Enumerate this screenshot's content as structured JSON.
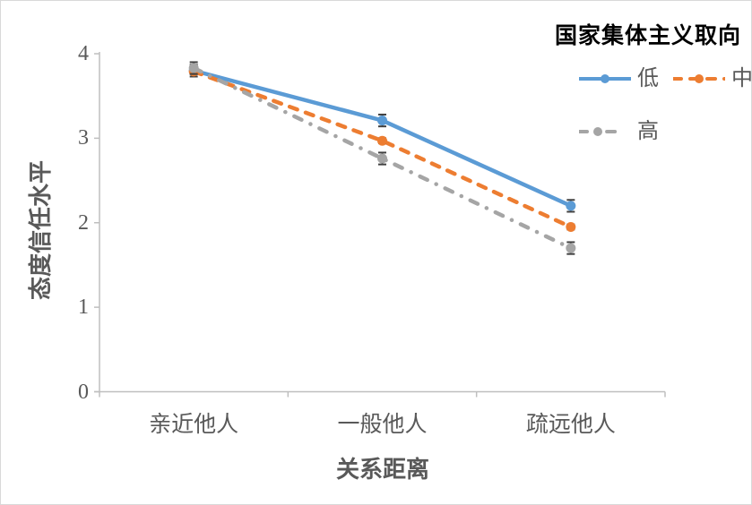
{
  "chart_data": {
    "type": "line",
    "title": "",
    "categories": [
      "亲近他人",
      "一般他人",
      "疏远他人"
    ],
    "series": [
      {
        "key": "low",
        "name": "低",
        "color": "#5B9BD5",
        "line_style": "solid",
        "values": [
          3.8,
          3.21,
          2.2
        ],
        "error": 0.07
      },
      {
        "key": "mid",
        "name": "中",
        "color": "#ED7D31",
        "line_style": "dashed",
        "values": [
          3.79,
          2.97,
          1.95
        ],
        "error": 0.03
      },
      {
        "key": "high",
        "name": "高",
        "color": "#A5A5A5",
        "line_style": "dashdot",
        "values": [
          3.83,
          2.76,
          1.7
        ],
        "error": 0.07
      }
    ],
    "xlabel": "关系距离",
    "ylabel": "态度信任水平",
    "ylim": [
      0,
      4
    ],
    "yticks": [
      4,
      3,
      2,
      1,
      0
    ],
    "legend_title": "国家集体主义取向",
    "legend_position": "top-right",
    "legend_rows": [
      [
        "low",
        "mid"
      ],
      [
        "high"
      ]
    ],
    "grid": false,
    "markers": "circle",
    "error_bars": true
  },
  "colors": {
    "axis": "#BFBFBF",
    "tick_text": "#595959",
    "axis_title_text": "#595959",
    "legend_title_text": "#000000",
    "legend_text": "#595959",
    "error_bar": "#404040",
    "border": "#D9D9D9",
    "background": "#FFFFFF"
  }
}
